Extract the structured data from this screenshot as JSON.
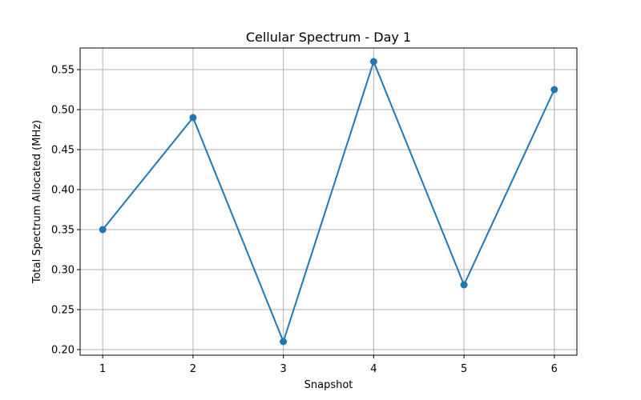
{
  "chart_data": {
    "type": "line",
    "title": "Cellular Spectrum - Day 1",
    "xlabel": "Snapshot",
    "ylabel": "Total Spectrum Allocated (MHz)",
    "x": [
      1,
      2,
      3,
      4,
      5,
      6
    ],
    "series": [
      {
        "values": [
          0.35,
          0.49,
          0.21,
          0.56,
          0.281,
          0.525
        ],
        "color": "#1f77b4"
      }
    ],
    "xlim": [
      0.75,
      6.25
    ],
    "ylim": [
      0.193,
      0.577
    ],
    "xticks": [
      1,
      2,
      3,
      4,
      5,
      6
    ],
    "xtick_labels": [
      "1",
      "2",
      "3",
      "4",
      "5",
      "6"
    ],
    "yticks": [
      0.2,
      0.25,
      0.3,
      0.35,
      0.4,
      0.45,
      0.5,
      0.55
    ],
    "ytick_labels": [
      "0.20",
      "0.25",
      "0.30",
      "0.35",
      "0.40",
      "0.45",
      "0.50",
      "0.55"
    ],
    "grid": true,
    "marker": "circle"
  }
}
